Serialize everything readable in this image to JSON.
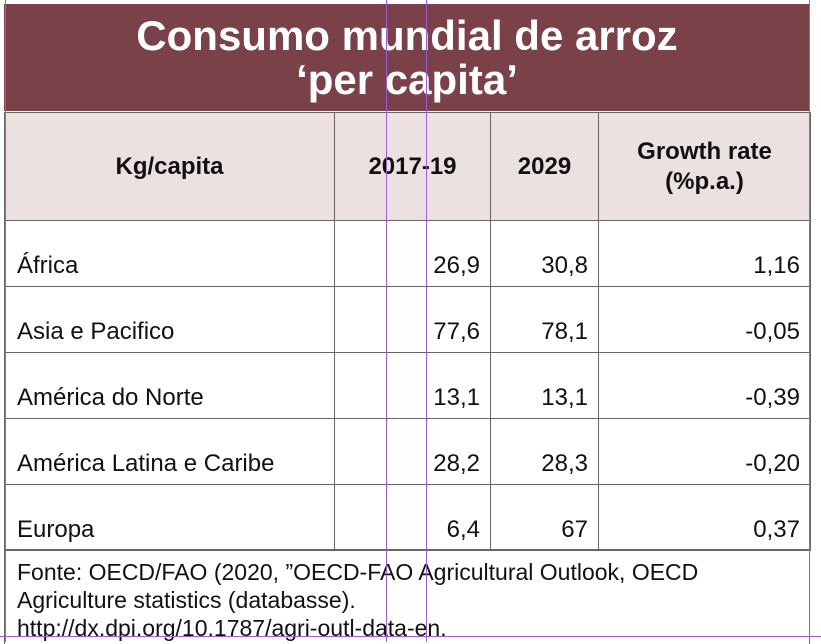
{
  "title": {
    "line1": "Consumo mundial de arroz",
    "line2": "‘per capita’"
  },
  "table": {
    "headers": {
      "label": "Kg/capita",
      "period1": "2017-19",
      "period2": "2029",
      "rate": "Growth rate (%p.a.)"
    },
    "rows": [
      {
        "region": "África",
        "v2017": "26,9",
        "v2029": "30,8",
        "rate": "1,16"
      },
      {
        "region": "Asia e Pacifico",
        "v2017": "77,6",
        "v2029": "78,1",
        "rate": "-0,05"
      },
      {
        "region": "América do Norte",
        "v2017": "13,1",
        "v2029": "13,1",
        "rate": "-0,39"
      },
      {
        "region": "América Latina e Caribe",
        "v2017": "28,2",
        "v2029": "28,3",
        "rate": "-0,20"
      },
      {
        "region": "Europa",
        "v2017": "6,4",
        "v2029": "67",
        "rate": "0,37"
      }
    ]
  },
  "source": {
    "line1": "Fonte: OECD/FAO (2020, ”OECD-FAO Agricultural Outlook, OECD",
    "line2": "Agriculture statistics (databasse).",
    "line3": "http://dx.dpi.org/10.1787/agri-outl-data-en."
  },
  "colors": {
    "title_bg": "#7a4148",
    "header_bg": "#ebe1e1",
    "guide": "#9b5fd0"
  }
}
